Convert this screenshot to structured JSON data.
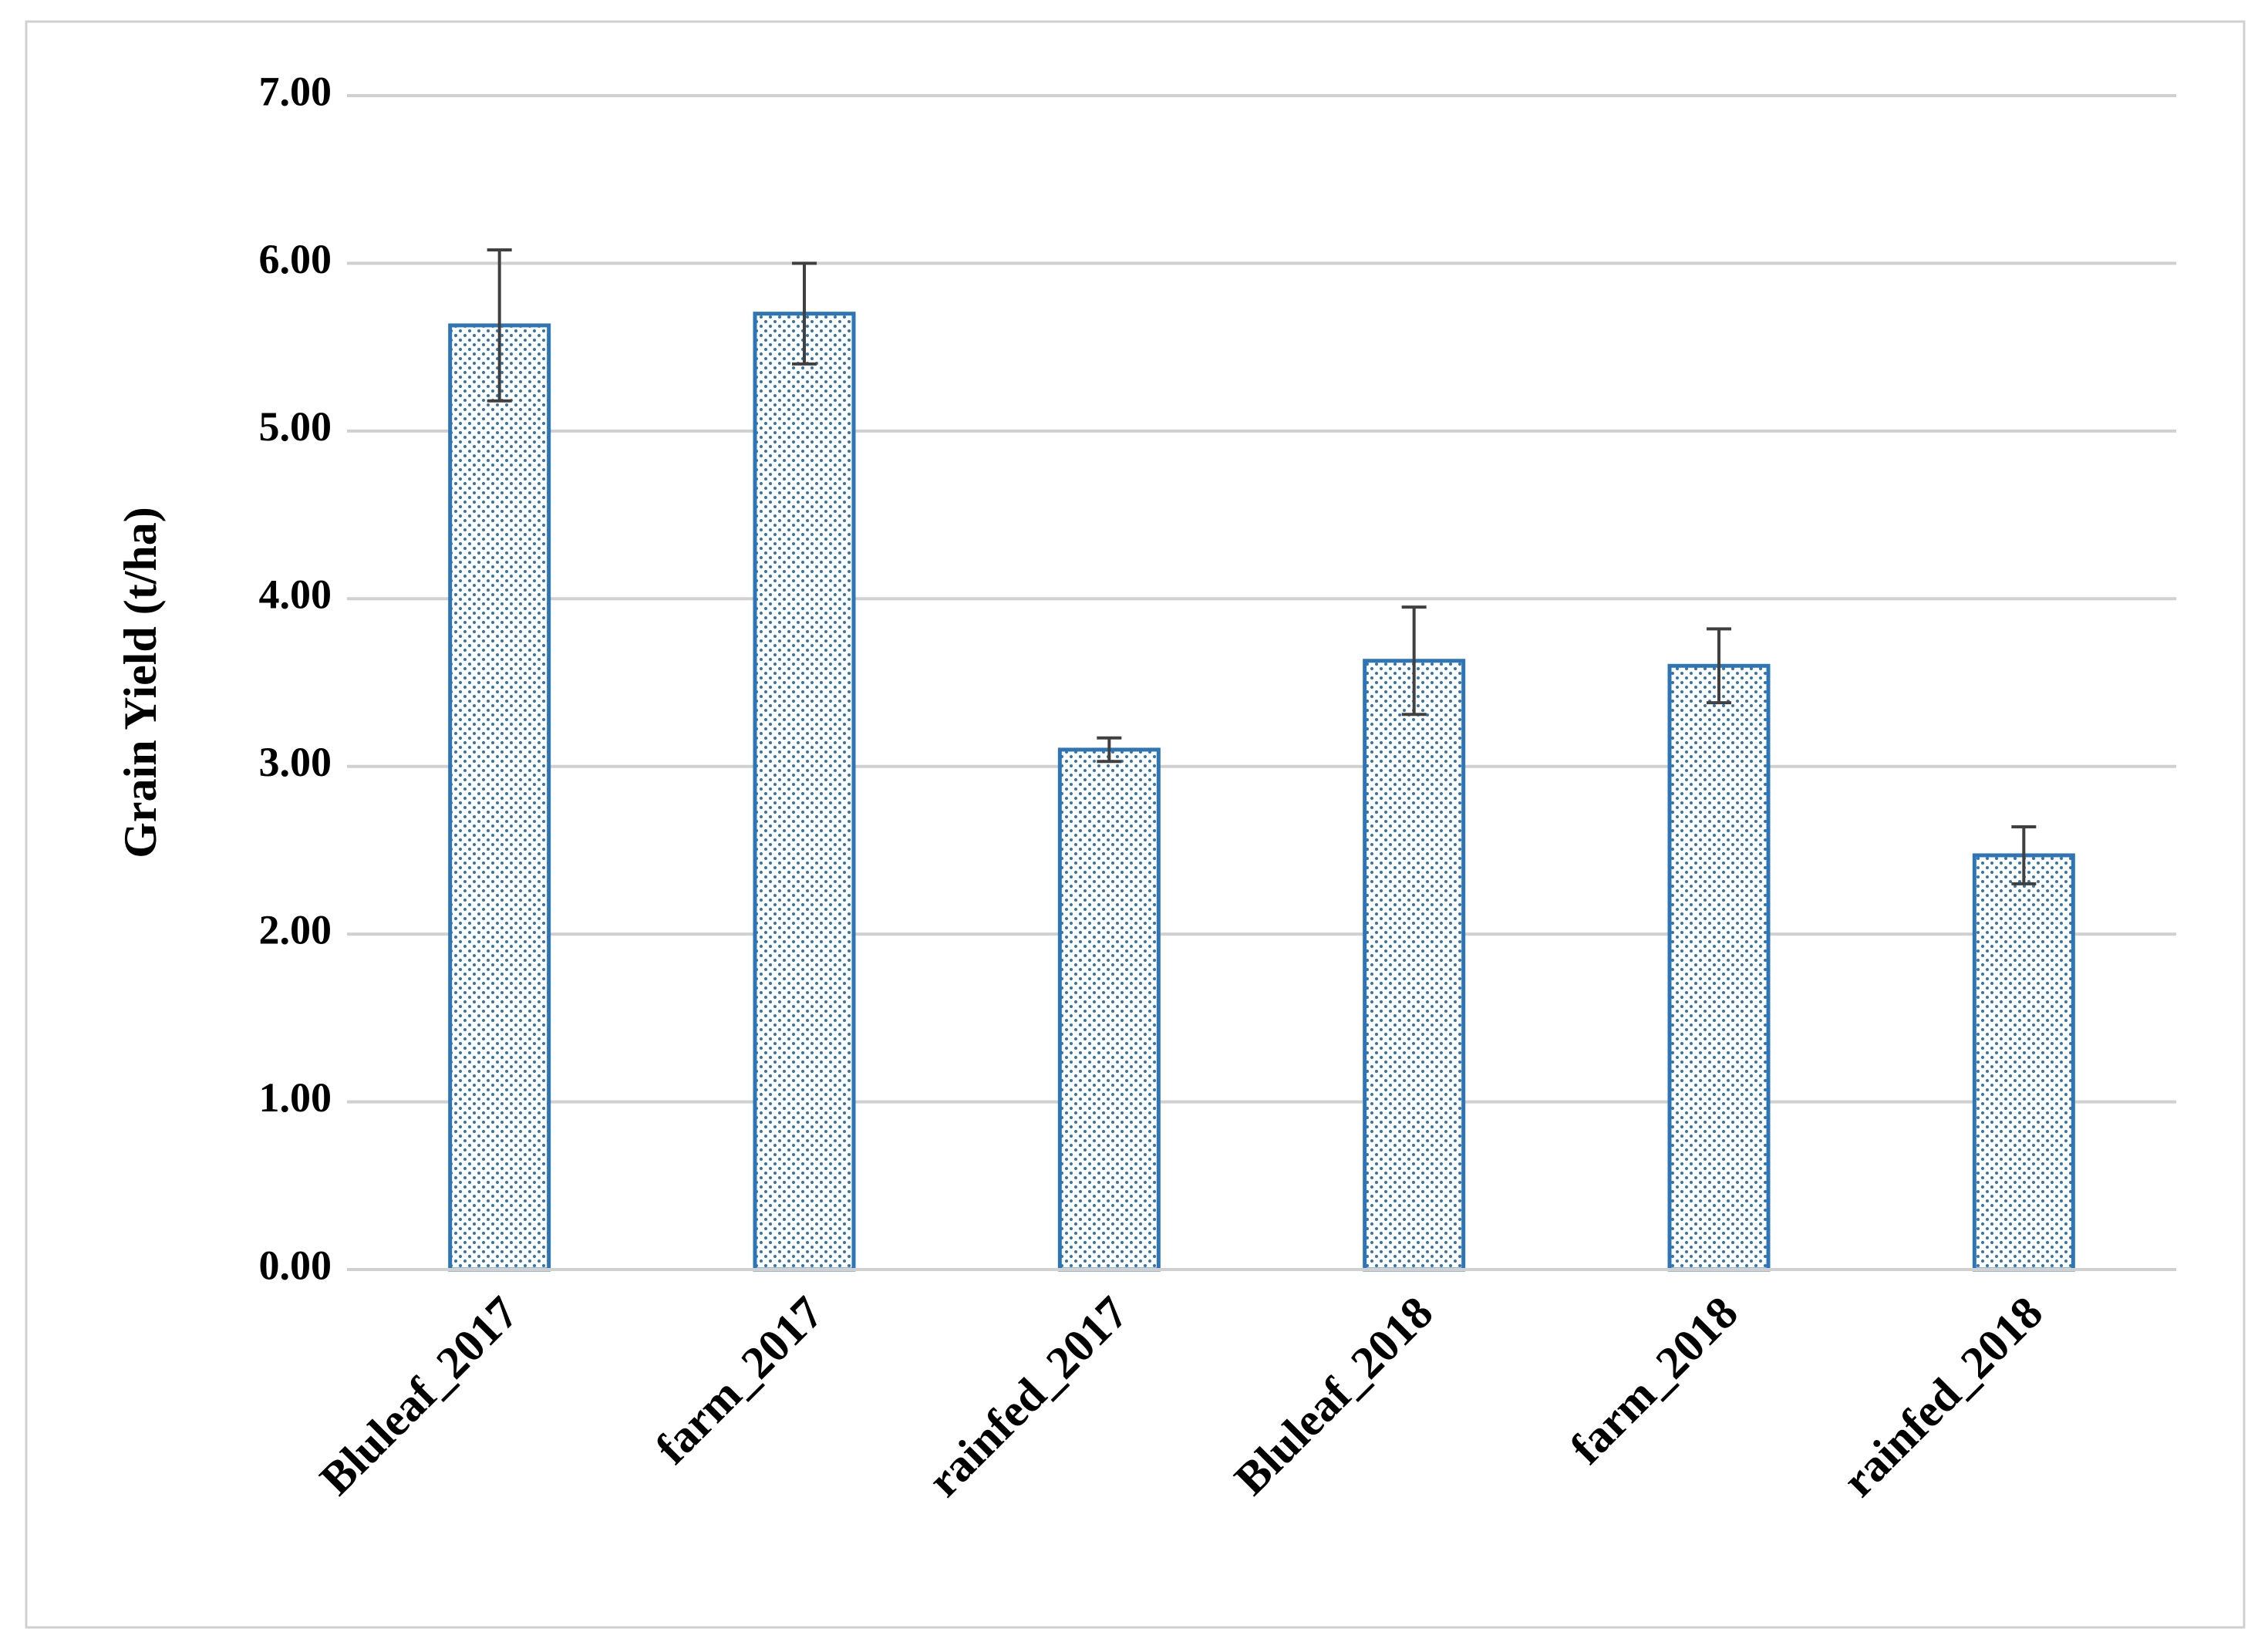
{
  "chart_data": {
    "type": "bar",
    "y_label": "Grain Yield (t/ha)",
    "categories": [
      "Bluleaf_2017",
      "farm_2017",
      "rainfed_2017",
      "Bluleaf_2018",
      "farm_2018",
      "rainfed_2018"
    ],
    "values": [
      5.63,
      5.7,
      3.1,
      3.63,
      3.6,
      2.47
    ],
    "errors": [
      0.45,
      0.3,
      0.07,
      0.32,
      0.22,
      0.17
    ],
    "color": "#2e75b6",
    "ylim": [
      0,
      7
    ],
    "yticks": [
      {
        "value": 0,
        "label": "0.00"
      },
      {
        "value": 1,
        "label": "1.00"
      },
      {
        "value": 2,
        "label": "2.00"
      },
      {
        "value": 3,
        "label": "3.00"
      },
      {
        "value": 4,
        "label": "4.00"
      },
      {
        "value": 5,
        "label": "5.00"
      },
      {
        "value": 6,
        "label": "6.00"
      },
      {
        "value": 7,
        "label": "7.00"
      }
    ],
    "grid": true
  }
}
